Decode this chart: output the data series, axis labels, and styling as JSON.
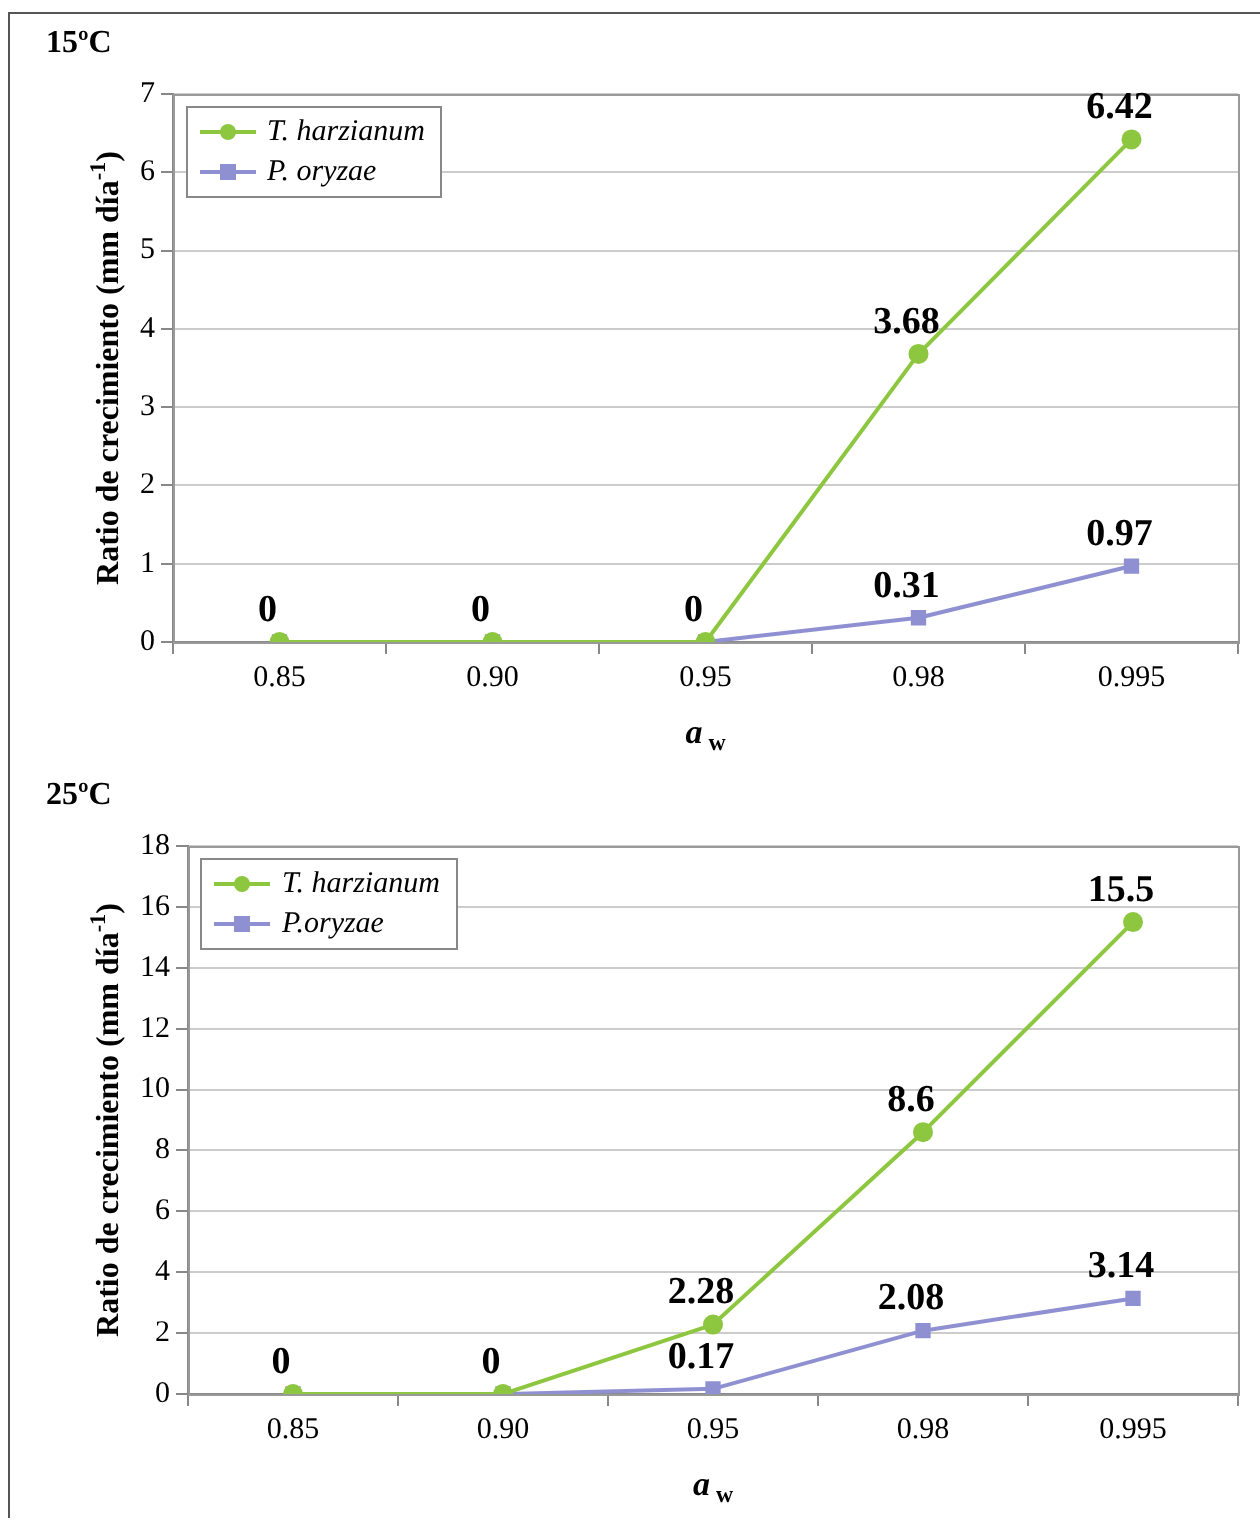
{
  "chart_data": [
    {
      "type": "line",
      "title": "15ºC",
      "xlabel": "a$_{w}$",
      "ylabel": "Ratio de crecimiento (mm día$^{-1}$)",
      "categories": [
        "0.85",
        "0.90",
        "0.95",
        "0.98",
        "0.995"
      ],
      "ylim": [
        0,
        7
      ],
      "yticks": [
        0,
        1,
        2,
        3,
        4,
        5,
        6,
        7
      ],
      "grid": "y",
      "legend": "top left",
      "series": [
        {
          "name": "T. harzianum",
          "color": "#8dc63f",
          "marker": "circle",
          "values": [
            0,
            0,
            0,
            3.68,
            6.42
          ],
          "value_labels": [
            null,
            null,
            null,
            "3.68",
            "6.42"
          ]
        },
        {
          "name": "P. oryzae",
          "color": "#8f90d2",
          "marker": "square",
          "values": [
            0,
            0,
            0,
            0.31,
            0.97
          ],
          "value_labels": [
            "0",
            "0",
            "0",
            "0.31",
            "0.97"
          ]
        }
      ]
    },
    {
      "type": "line",
      "title": "25ºC",
      "xlabel": "a$_{w}$",
      "ylabel": "Ratio de crecimiento (mm día$^{-1}$)",
      "categories": [
        "0.85",
        "0.90",
        "0.95",
        "0.98",
        "0.995"
      ],
      "ylim": [
        0,
        18
      ],
      "yticks": [
        0,
        2,
        4,
        6,
        8,
        10,
        12,
        14,
        16,
        18
      ],
      "grid": "y",
      "legend": "top left",
      "series": [
        {
          "name": "T. harzianum",
          "color": "#8dc63f",
          "marker": "circle",
          "values": [
            0,
            0,
            2.28,
            8.6,
            15.5
          ],
          "value_labels": [
            null,
            null,
            "2.28",
            "8.6",
            "15.5"
          ]
        },
        {
          "name": "P.oryzae",
          "color": "#8f90d2",
          "marker": "square",
          "values": [
            0,
            0,
            0.17,
            2.08,
            3.14
          ],
          "value_labels": [
            "0",
            "0",
            "0.17",
            "2.08",
            "3.14"
          ]
        }
      ]
    }
  ]
}
